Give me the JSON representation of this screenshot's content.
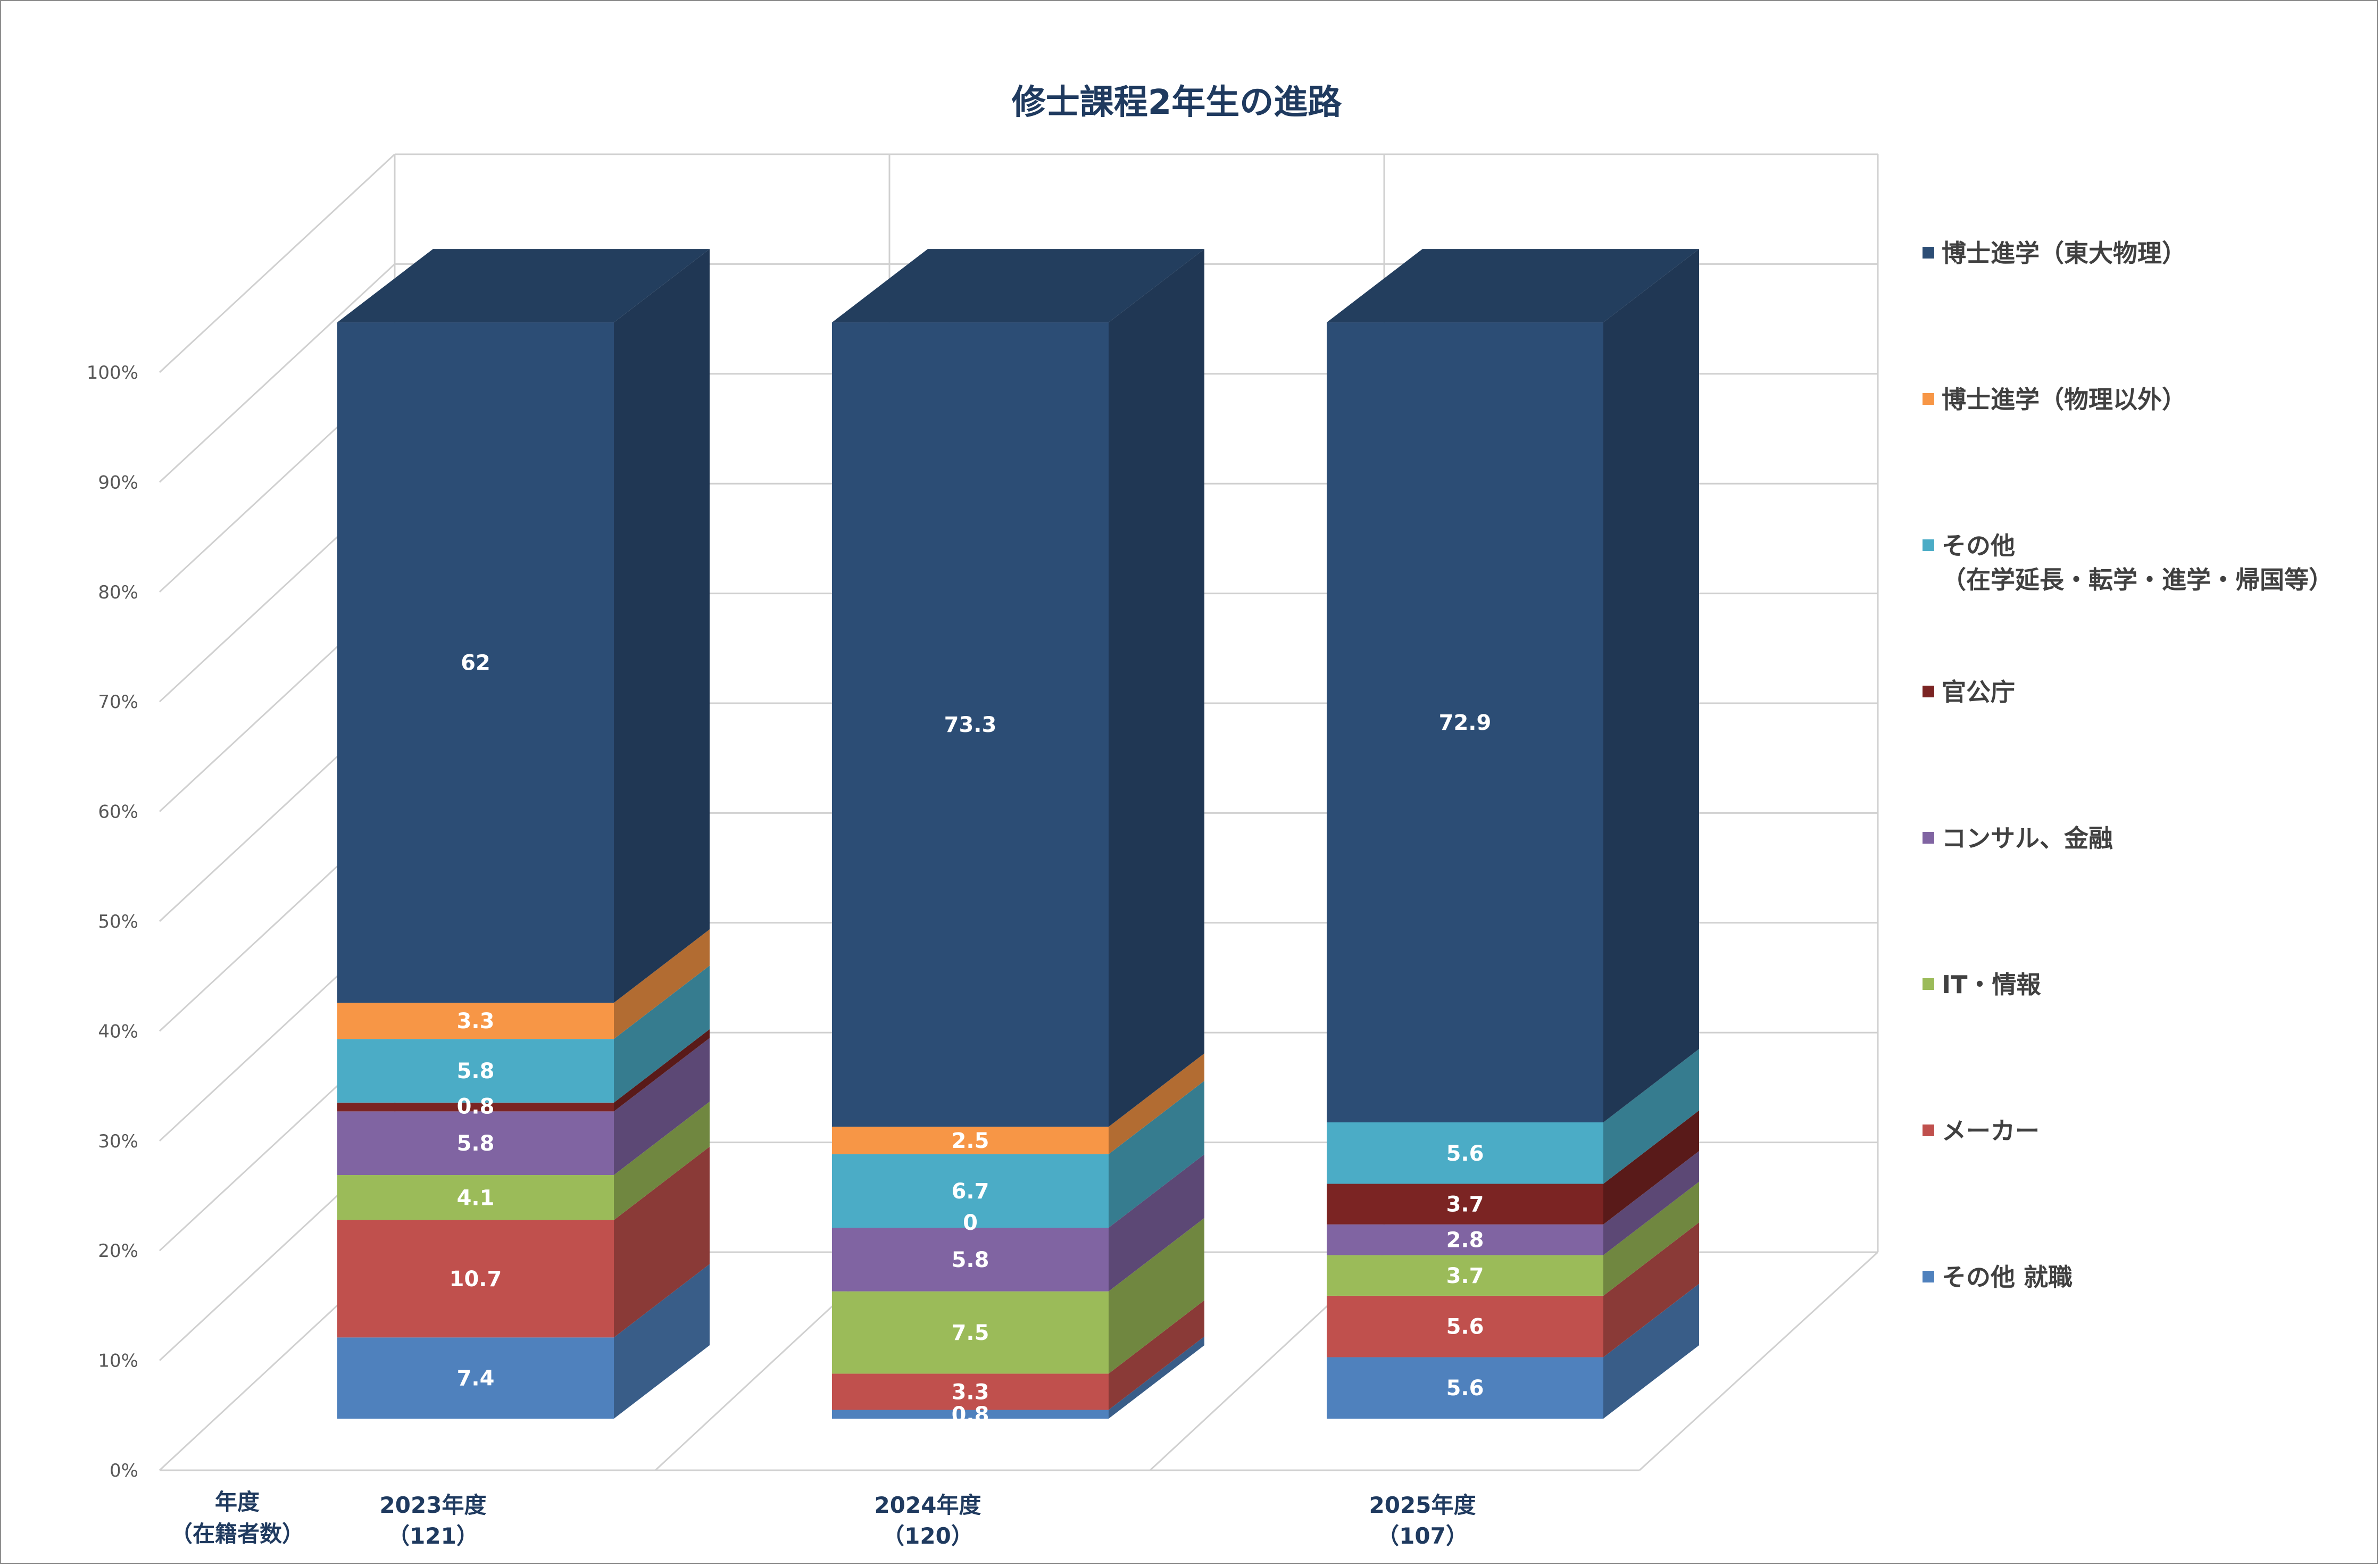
{
  "chart_data": {
    "type": "bar",
    "stacked": true,
    "three_d": true,
    "title": "修士課程2年生の進路",
    "x_axis_title": [
      "年度",
      "（在籍者数）"
    ],
    "categories": [
      {
        "label": "2023年度",
        "sublabel": "（121）"
      },
      {
        "label": "2024年度",
        "sublabel": "（120）"
      },
      {
        "label": "2025年度",
        "sublabel": "（107）"
      }
    ],
    "ylim": [
      0,
      100
    ],
    "y_ticks": [
      "0%",
      "10%",
      "20%",
      "30%",
      "40%",
      "50%",
      "60%",
      "70%",
      "80%",
      "90%",
      "100%"
    ],
    "grid": true,
    "legend_position": "right",
    "series": [
      {
        "name": "その他 就職",
        "color": "#4f81bd",
        "values": [
          7.4,
          0.8,
          5.6
        ],
        "labels": [
          "7.4",
          "0.8",
          "5.6"
        ]
      },
      {
        "name": "メーカー",
        "color": "#c0504d",
        "values": [
          10.7,
          3.3,
          5.6
        ],
        "labels": [
          "10.7",
          "3.3",
          "5.6"
        ]
      },
      {
        "name": "IT・情報",
        "color": "#9bbb59",
        "values": [
          4.1,
          7.5,
          3.7
        ],
        "labels": [
          "4.1",
          "7.5",
          "3.7"
        ]
      },
      {
        "name": "コンサル、金融",
        "color": "#8064a2",
        "values": [
          5.8,
          5.8,
          2.8
        ],
        "labels": [
          "5.8",
          "5.8",
          "2.8"
        ]
      },
      {
        "name": "官公庁",
        "color": "#7b2423",
        "values": [
          0.8,
          0,
          3.7
        ],
        "labels": [
          "0.8",
          "0",
          "3.7"
        ]
      },
      {
        "name": [
          "その他",
          "（在学延長・転学・進学・帰国等）"
        ],
        "color": "#4bacc6",
        "values": [
          5.8,
          6.7,
          5.6
        ],
        "labels": [
          "5.8",
          "6.7",
          "5.6"
        ]
      },
      {
        "name": "博士進学（物理以外）",
        "color": "#f79646",
        "values": [
          3.3,
          2.5,
          0
        ],
        "labels": [
          "3.3",
          "2.5",
          ""
        ]
      },
      {
        "name": "博士進学（東大物理）",
        "color": "#2c4d75",
        "values": [
          62,
          73.3,
          72.9
        ],
        "labels": [
          "62",
          "73.3",
          "72.9"
        ]
      }
    ]
  }
}
